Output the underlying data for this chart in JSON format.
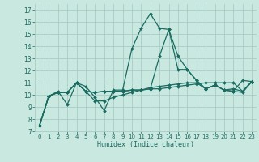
{
  "title": "",
  "xlabel": "Humidex (Indice chaleur)",
  "ylabel": "",
  "bg_color": "#c8e8e0",
  "grid_color": "#a8ccc8",
  "line_color": "#1a6b60",
  "xlim": [
    -0.5,
    23.5
  ],
  "ylim": [
    7,
    17.5
  ],
  "yticks": [
    7,
    8,
    9,
    10,
    11,
    12,
    13,
    14,
    15,
    16,
    17
  ],
  "xticks": [
    0,
    1,
    2,
    3,
    4,
    5,
    6,
    7,
    8,
    9,
    10,
    11,
    12,
    13,
    14,
    15,
    16,
    17,
    18,
    19,
    20,
    21,
    22,
    23
  ],
  "lines": [
    {
      "x": [
        0,
        1,
        2,
        3,
        4,
        5,
        6,
        7,
        8,
        9,
        10,
        11,
        12,
        13,
        14,
        15,
        16,
        17,
        18,
        19,
        20,
        21,
        22,
        23
      ],
      "y": [
        7.5,
        9.9,
        10.3,
        9.2,
        11.0,
        10.7,
        9.8,
        8.7,
        10.4,
        10.4,
        13.8,
        15.5,
        16.7,
        15.5,
        15.4,
        12.1,
        12.1,
        11.2,
        10.5,
        10.8,
        10.4,
        10.3,
        11.2,
        11.1
      ]
    },
    {
      "x": [
        0,
        1,
        2,
        3,
        4,
        5,
        6,
        7,
        8,
        9,
        10,
        11,
        12,
        13,
        14,
        15,
        16,
        17,
        18,
        19,
        20,
        21,
        22,
        23
      ],
      "y": [
        7.5,
        9.9,
        10.2,
        10.2,
        11.0,
        10.3,
        10.2,
        10.3,
        10.3,
        10.3,
        10.4,
        10.4,
        10.5,
        10.5,
        10.6,
        10.7,
        10.8,
        10.9,
        11.0,
        11.0,
        11.0,
        11.0,
        10.3,
        11.1
      ]
    },
    {
      "x": [
        0,
        1,
        2,
        3,
        4,
        5,
        6,
        7,
        8,
        9,
        10,
        11,
        12,
        13,
        14,
        15,
        16,
        17,
        18,
        19,
        20,
        21,
        22,
        23
      ],
      "y": [
        7.5,
        9.9,
        10.2,
        10.2,
        11.0,
        10.3,
        9.5,
        9.5,
        9.8,
        10.0,
        10.2,
        10.4,
        10.6,
        10.7,
        10.8,
        10.9,
        11.0,
        11.0,
        10.5,
        10.8,
        10.4,
        10.5,
        10.3,
        11.1
      ]
    },
    {
      "x": [
        0,
        1,
        2,
        3,
        4,
        5,
        6,
        7,
        8,
        9,
        10,
        11,
        12,
        13,
        14,
        15,
        16,
        17,
        18,
        19,
        20,
        21,
        22,
        23
      ],
      "y": [
        7.5,
        9.9,
        10.2,
        10.2,
        11.0,
        10.3,
        10.2,
        10.3,
        10.3,
        10.3,
        10.4,
        10.4,
        10.5,
        13.2,
        15.4,
        13.2,
        12.1,
        11.2,
        10.5,
        10.8,
        10.4,
        10.3,
        10.2,
        11.1
      ]
    }
  ]
}
